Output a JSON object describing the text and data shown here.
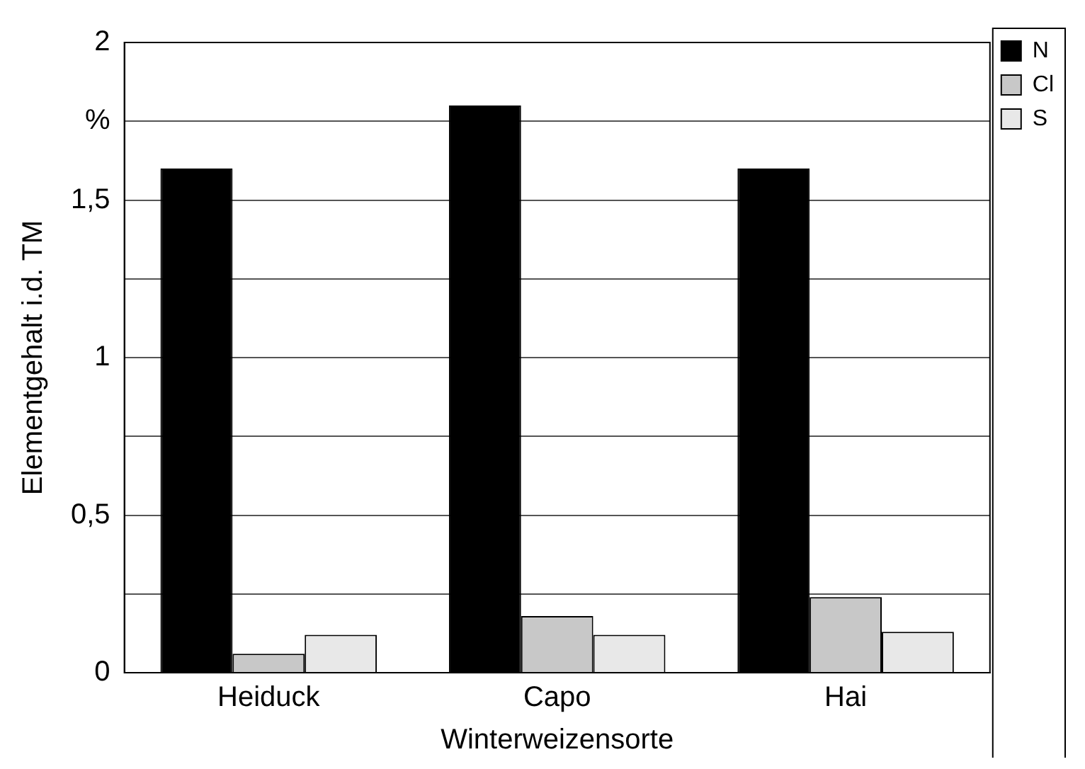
{
  "chart_data": {
    "type": "bar",
    "xlabel": "Winterweizensorte",
    "ylabel": "Elementgehalt i.d. TM",
    "categories": [
      "Heiduck",
      "Capo",
      "Hai"
    ],
    "series": [
      {
        "name": "N",
        "color": "#000000",
        "values": [
          1.6,
          1.8,
          1.6
        ]
      },
      {
        "name": "Cl",
        "color": "#c8c8c8",
        "values": [
          0.06,
          0.18,
          0.24
        ]
      },
      {
        "name": "S",
        "color": "#e8e8e8",
        "values": [
          0.12,
          0.12,
          0.13
        ]
      }
    ],
    "ylim": [
      0,
      2
    ],
    "yticks": [
      0,
      {
        "value": 0.25,
        "label": null
      },
      {
        "value": 0.5,
        "label": "0,5"
      },
      {
        "value": 0.75,
        "label": null
      },
      1,
      {
        "value": 1.25,
        "label": null
      },
      {
        "value": 1.5,
        "label": "1,5"
      },
      {
        "value": 1.75,
        "label": "%"
      },
      2
    ],
    "grid": "y",
    "legend": "top right"
  }
}
